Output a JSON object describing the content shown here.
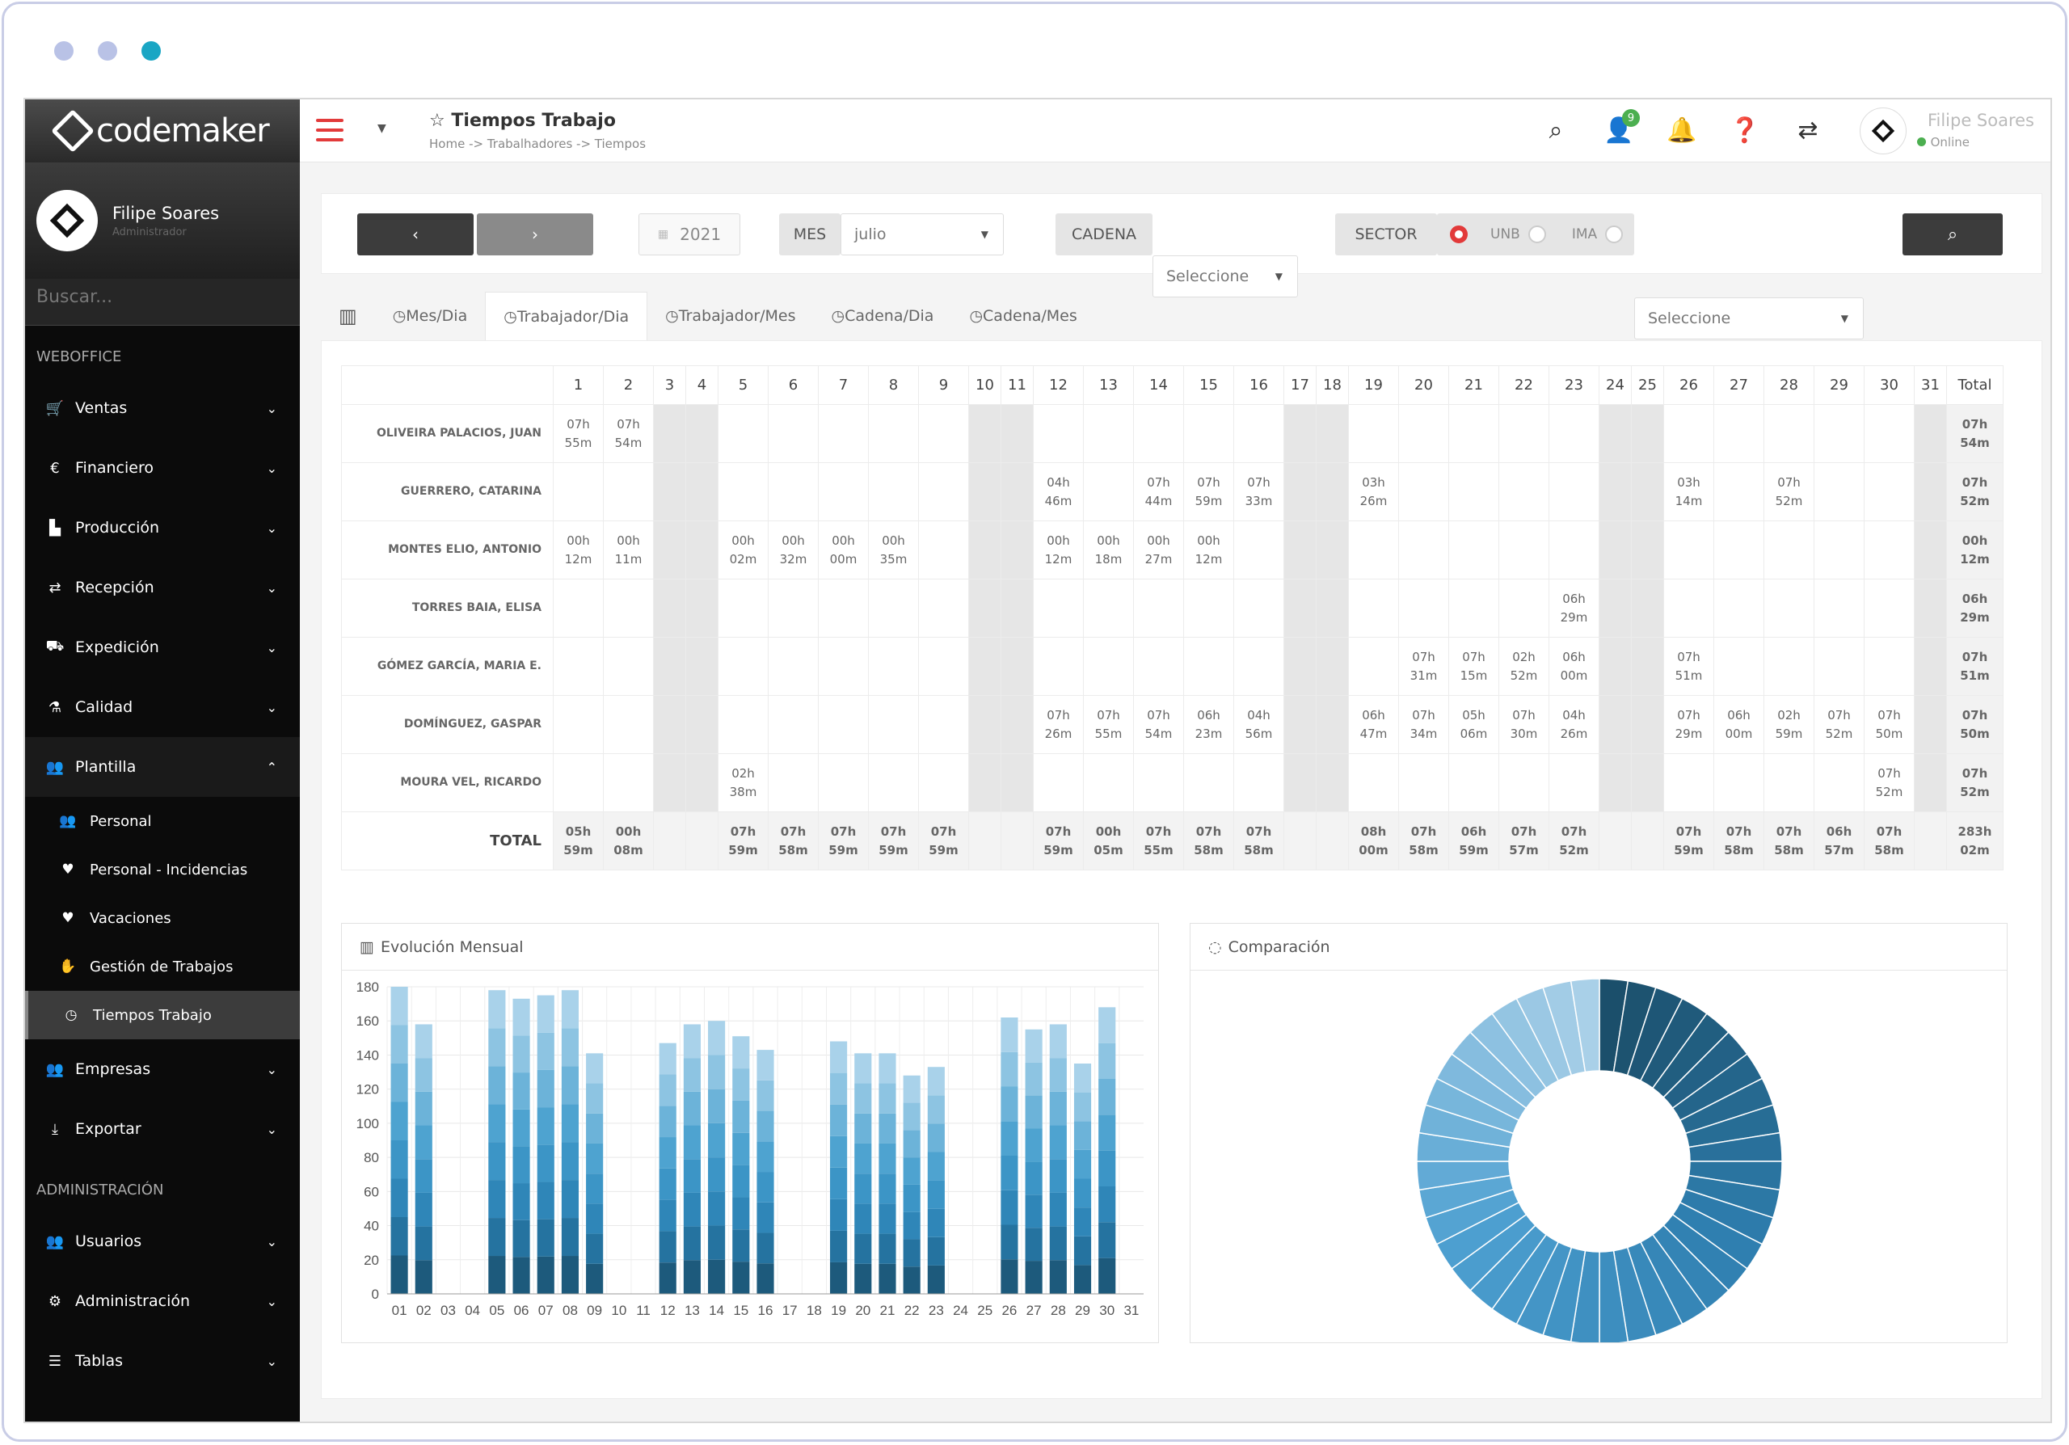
{
  "window": {
    "dots": [
      "dot-1",
      "dot-2",
      "dot-3"
    ]
  },
  "sidebar": {
    "brand": "codemaker",
    "user": {
      "name": "Filipe Soares",
      "role": "Administrador"
    },
    "search_placeholder": "Buscar...",
    "section_weboffice": "WEBOFFICE",
    "section_admin": "ADMINISTRACIÓN",
    "items": [
      {
        "label": "Ventas",
        "icon": "cart-icon"
      },
      {
        "label": "Financiero",
        "icon": "euro-icon"
      },
      {
        "label": "Producción",
        "icon": "chart-icon"
      },
      {
        "label": "Recepción",
        "icon": "exchange-icon"
      },
      {
        "label": "Expedición",
        "icon": "truck-icon"
      },
      {
        "label": "Calidad",
        "icon": "flask-icon"
      },
      {
        "label": "Plantilla",
        "icon": "users-icon"
      }
    ],
    "sub_items": [
      {
        "label": "Personal"
      },
      {
        "label": "Personal - Incidencias"
      },
      {
        "label": "Vacaciones"
      },
      {
        "label": "Gestión de Trabajos"
      },
      {
        "label": "Tiempos Trabajo"
      }
    ],
    "items_after": [
      {
        "label": "Empresas"
      },
      {
        "label": "Exportar"
      }
    ],
    "admin_items": [
      {
        "label": "Usuarios"
      },
      {
        "label": "Administración"
      },
      {
        "label": "Tablas"
      }
    ]
  },
  "header": {
    "title": "Tiempos Trabajo",
    "breadcrumb": "Home -> Trabalhadores -> Tiempos",
    "notif_badge": "9",
    "user": "Filipe Soares",
    "status": "Online"
  },
  "filter": {
    "prev": "‹",
    "next": "›",
    "year": "2021",
    "mes_label": "MES",
    "mes_value": "julio",
    "cadena_label": "CADENA",
    "cadena_value": "Seleccione",
    "sector_label": "SECTOR",
    "radio1": "UNB",
    "radio2": "IMA",
    "sector_value": "Seleccione"
  },
  "tabs": [
    "Mes/Dia",
    "Trabajador/Dia",
    "Trabajador/Mes",
    "Cadena/Dia",
    "Cadena/Mes"
  ],
  "table": {
    "total_header": "Total",
    "weekend_days": [
      3,
      4,
      10,
      11,
      17,
      18,
      24,
      25,
      31
    ],
    "rows": [
      {
        "name": "OLIVEIRA PALACIOS, JUAN",
        "cells": {
          "1": "07h 55m",
          "2": "07h 54m"
        },
        "total": "07h 54m"
      },
      {
        "name": "GUERRERO, CATARINA",
        "cells": {
          "12": "04h 46m",
          "14": "07h 44m",
          "15": "07h 59m",
          "16": "07h 33m",
          "19": "03h 26m",
          "26": "03h 14m",
          "28": "07h 52m"
        },
        "total": "07h 52m"
      },
      {
        "name": "MONTES ELIO, ANTONIO",
        "cells": {
          "1": "00h 12m",
          "2": "00h 11m",
          "5": "00h 02m",
          "6": "00h 32m",
          "7": "00h 00m",
          "8": "00h 35m",
          "12": "00h 12m",
          "13": "00h 18m",
          "14": "00h 27m",
          "15": "00h 12m"
        },
        "total": "00h 12m"
      },
      {
        "name": "TORRES BAIA, ELISA",
        "cells": {
          "23": "06h 29m"
        },
        "total": "06h 29m"
      },
      {
        "name": "GÓMEZ GARCÍA, MARIA E.",
        "cells": {
          "20": "07h 31m",
          "21": "07h 15m",
          "22": "02h 52m",
          "23": "06h 00m",
          "26": "07h 51m"
        },
        "total": "07h 51m"
      },
      {
        "name": "DOMÍNGUEZ, GASPAR",
        "cells": {
          "12": "07h 26m",
          "13": "07h 55m",
          "14": "07h 54m",
          "15": "06h 23m",
          "16": "04h 56m",
          "19": "06h 47m",
          "20": "07h 34m",
          "21": "05h 06m",
          "22": "07h 30m",
          "23": "04h 26m",
          "26": "07h 29m",
          "27": "06h 00m",
          "28": "02h 59m",
          "29": "07h 52m",
          "30": "07h 50m"
        },
        "total": "07h 50m"
      },
      {
        "name": "MOURA VEL, RICARDO",
        "cells": {
          "5": "02h 38m",
          "30": "07h 52m"
        },
        "total": "07h 52m"
      }
    ],
    "total_row": {
      "name": "TOTAL",
      "cells": {
        "1": "05h 59m",
        "2": "00h 08m",
        "5": "07h 59m",
        "6": "07h 58m",
        "7": "07h 59m",
        "8": "07h 59m",
        "9": "07h 59m",
        "12": "07h 59m",
        "13": "00h 05m",
        "14": "07h 55m",
        "15": "07h 58m",
        "16": "07h 58m",
        "19": "08h 00m",
        "20": "07h 58m",
        "21": "06h 59m",
        "22": "07h 57m",
        "23": "07h 52m",
        "26": "07h 59m",
        "27": "07h 58m",
        "28": "07h 58m",
        "29": "06h 57m",
        "30": "07h 58m"
      },
      "total": "283h 02m"
    }
  },
  "chart_data": [
    {
      "type": "bar",
      "title": "Evolución Mensual",
      "categories": [
        "01",
        "02",
        "03",
        "04",
        "05",
        "06",
        "07",
        "08",
        "09",
        "10",
        "11",
        "12",
        "13",
        "14",
        "15",
        "16",
        "17",
        "18",
        "19",
        "20",
        "21",
        "22",
        "23",
        "24",
        "25",
        "26",
        "27",
        "28",
        "29",
        "30",
        "31"
      ],
      "values": [
        180,
        158,
        0,
        0,
        178,
        173,
        175,
        178,
        141,
        0,
        0,
        147,
        158,
        160,
        151,
        143,
        0,
        0,
        148,
        141,
        141,
        128,
        133,
        0,
        0,
        162,
        155,
        158,
        135,
        168,
        0
      ],
      "ylim": [
        0,
        180
      ],
      "yticks": [
        0,
        20,
        40,
        60,
        80,
        100,
        120,
        140,
        160,
        180
      ],
      "stacked": true,
      "grid": true
    },
    {
      "type": "pie",
      "title": "Comparación",
      "donut": true,
      "slices": 40,
      "colors": [
        "#1b4f6b",
        "#2f7fb0",
        "#4d9fd0",
        "#a9d0e8"
      ]
    }
  ]
}
